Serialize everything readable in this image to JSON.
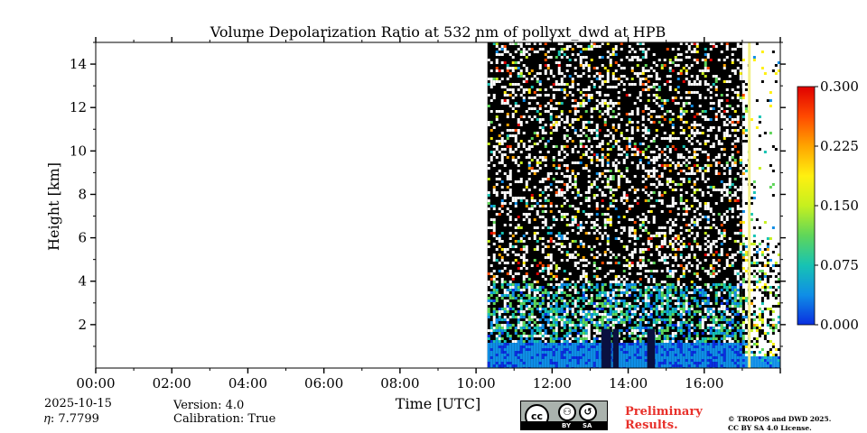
{
  "chart_data": {
    "type": "heatmap",
    "title": "Volume Depolarization Ratio at 532 nm of pollyxt_dwd at HPB",
    "xlabel": "Time [UTC]",
    "ylabel": "Height [km]",
    "x_ticks": [
      "00:00",
      "02:00",
      "04:00",
      "06:00",
      "08:00",
      "10:00",
      "12:00",
      "14:00",
      "16:00"
    ],
    "x_tick_hours": [
      0,
      2,
      4,
      6,
      8,
      10,
      12,
      14,
      16
    ],
    "xlim_hours": [
      0,
      18
    ],
    "y_ticks": [
      "2",
      "4",
      "6",
      "8",
      "10",
      "12",
      "14"
    ],
    "y_tick_values": [
      2,
      4,
      6,
      8,
      10,
      12,
      14
    ],
    "ylim_km": [
      0,
      15
    ],
    "data_start_hour": 10.3,
    "data_end_hour": 18.0,
    "dense_end_hour": 17.0,
    "colorbar": {
      "ticks": [
        "0.300",
        "0.225",
        "0.150",
        "0.075",
        "0.000"
      ],
      "min": 0.0,
      "max": 0.3,
      "colors": [
        "#0a2ee0",
        "#0f8ee6",
        "#17c3b3",
        "#5fd65a",
        "#c6f01f",
        "#fff010",
        "#ffa500",
        "#ff4a00",
        "#e00000"
      ]
    }
  },
  "footer": {
    "date": "2025-10-15",
    "eta": "𝜂: 7.7799",
    "version": "Version: 4.0",
    "calibration": "Calibration: True",
    "preliminary_line1": "Preliminary",
    "preliminary_line2": "Results.",
    "copyright_line1": "© TROPOS and DWD 2025.",
    "copyright_line2": "CC BY SA 4.0 License.",
    "cc_by": "BY",
    "cc_sa": "SA",
    "cc_mark": "cc"
  }
}
